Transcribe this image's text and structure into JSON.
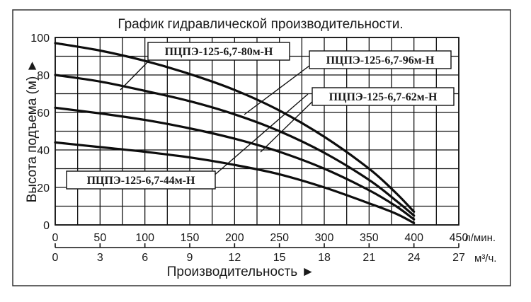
{
  "chart_data": {
    "type": "line",
    "title": "График гидравлической производительности.",
    "xlabel": "Производительность ►",
    "ylabel": "Высота подъема (м) ►",
    "x_unit_primary": "л/мин.",
    "x_unit_secondary": "м³/ч.",
    "xlim": [
      0,
      450
    ],
    "ylim": [
      0,
      100
    ],
    "x_ticks": [
      0,
      50,
      100,
      150,
      200,
      250,
      300,
      350,
      400,
      450
    ],
    "x2_ticks": [
      0,
      3,
      6,
      9,
      12,
      15,
      18,
      21,
      24,
      27
    ],
    "y_ticks": [
      0,
      20,
      40,
      60,
      80,
      100
    ],
    "grid": true,
    "series": [
      {
        "name": "ПЦПЭ-125-6,7-96м-Н",
        "x": [
          0,
          50,
          100,
          150,
          200,
          250,
          300,
          350,
          380,
          400
        ],
        "y": [
          97,
          93,
          87.5,
          80.5,
          72,
          61,
          47,
          30,
          17,
          7
        ]
      },
      {
        "name": "ПЦПЭ-125-6,7-80м-Н",
        "x": [
          0,
          50,
          100,
          150,
          200,
          250,
          300,
          350,
          380,
          400
        ],
        "y": [
          80,
          76.5,
          71.5,
          66,
          59,
          50,
          38.5,
          24,
          13,
          5
        ]
      },
      {
        "name": "ПЦПЭ-125-6,7-62м-Н",
        "x": [
          0,
          50,
          100,
          150,
          200,
          250,
          300,
          350,
          380,
          400
        ],
        "y": [
          62.5,
          59.5,
          56,
          51.5,
          46,
          39,
          30,
          18.5,
          10,
          3
        ]
      },
      {
        "name": "ПЦПЭ-125-6,7-44м-Н",
        "x": [
          0,
          50,
          100,
          150,
          200,
          250,
          300,
          350,
          380,
          400
        ],
        "y": [
          44,
          41.5,
          39,
          36,
          32,
          27,
          20,
          11.5,
          6,
          1
        ]
      }
    ]
  }
}
